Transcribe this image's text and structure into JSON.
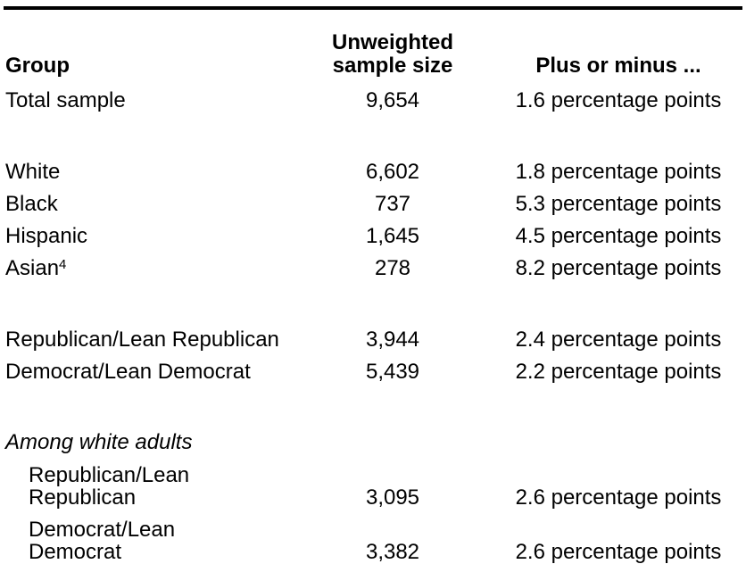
{
  "page": {
    "background_color": "#ffffff",
    "text_color": "#000000",
    "rule_color": "#000000"
  },
  "table": {
    "headers": {
      "group": "Group",
      "sample_size_line1": "Unweighted",
      "sample_size_line2": "sample size",
      "moe": "Plus or minus ..."
    },
    "rows": [
      {
        "type": "data",
        "group": "Total sample",
        "sample_size": "9,654",
        "moe": "1.6 percentage points"
      },
      {
        "type": "spacer"
      },
      {
        "type": "data",
        "group": "White",
        "sample_size": "6,602",
        "moe": "1.8 percentage points"
      },
      {
        "type": "data",
        "group": "Black",
        "sample_size": "737",
        "moe": "5.3 percentage points"
      },
      {
        "type": "data",
        "group": "Hispanic",
        "sample_size": "1,645",
        "moe": "4.5 percentage points"
      },
      {
        "type": "data",
        "group": "Asian",
        "footnote": "4",
        "sample_size": "278",
        "moe": "8.2 percentage points"
      },
      {
        "type": "spacer"
      },
      {
        "type": "data",
        "group": "Republican/Lean Republican",
        "sample_size": "3,944",
        "moe": "2.4 percentage points"
      },
      {
        "type": "data",
        "group": "Democrat/Lean Democrat",
        "sample_size": "5,439",
        "moe": "2.2 percentage points"
      },
      {
        "type": "spacer"
      },
      {
        "type": "section",
        "label": "Among white adults"
      },
      {
        "type": "data",
        "indent": true,
        "group_lines": [
          "Republican/Lean",
          "Republican"
        ],
        "sample_size": "3,095",
        "moe": "2.6 percentage points"
      },
      {
        "type": "data",
        "indent": true,
        "group_lines": [
          "Democrat/Lean",
          "Democrat"
        ],
        "sample_size": "3,382",
        "moe": "2.6 percentage points"
      }
    ]
  }
}
